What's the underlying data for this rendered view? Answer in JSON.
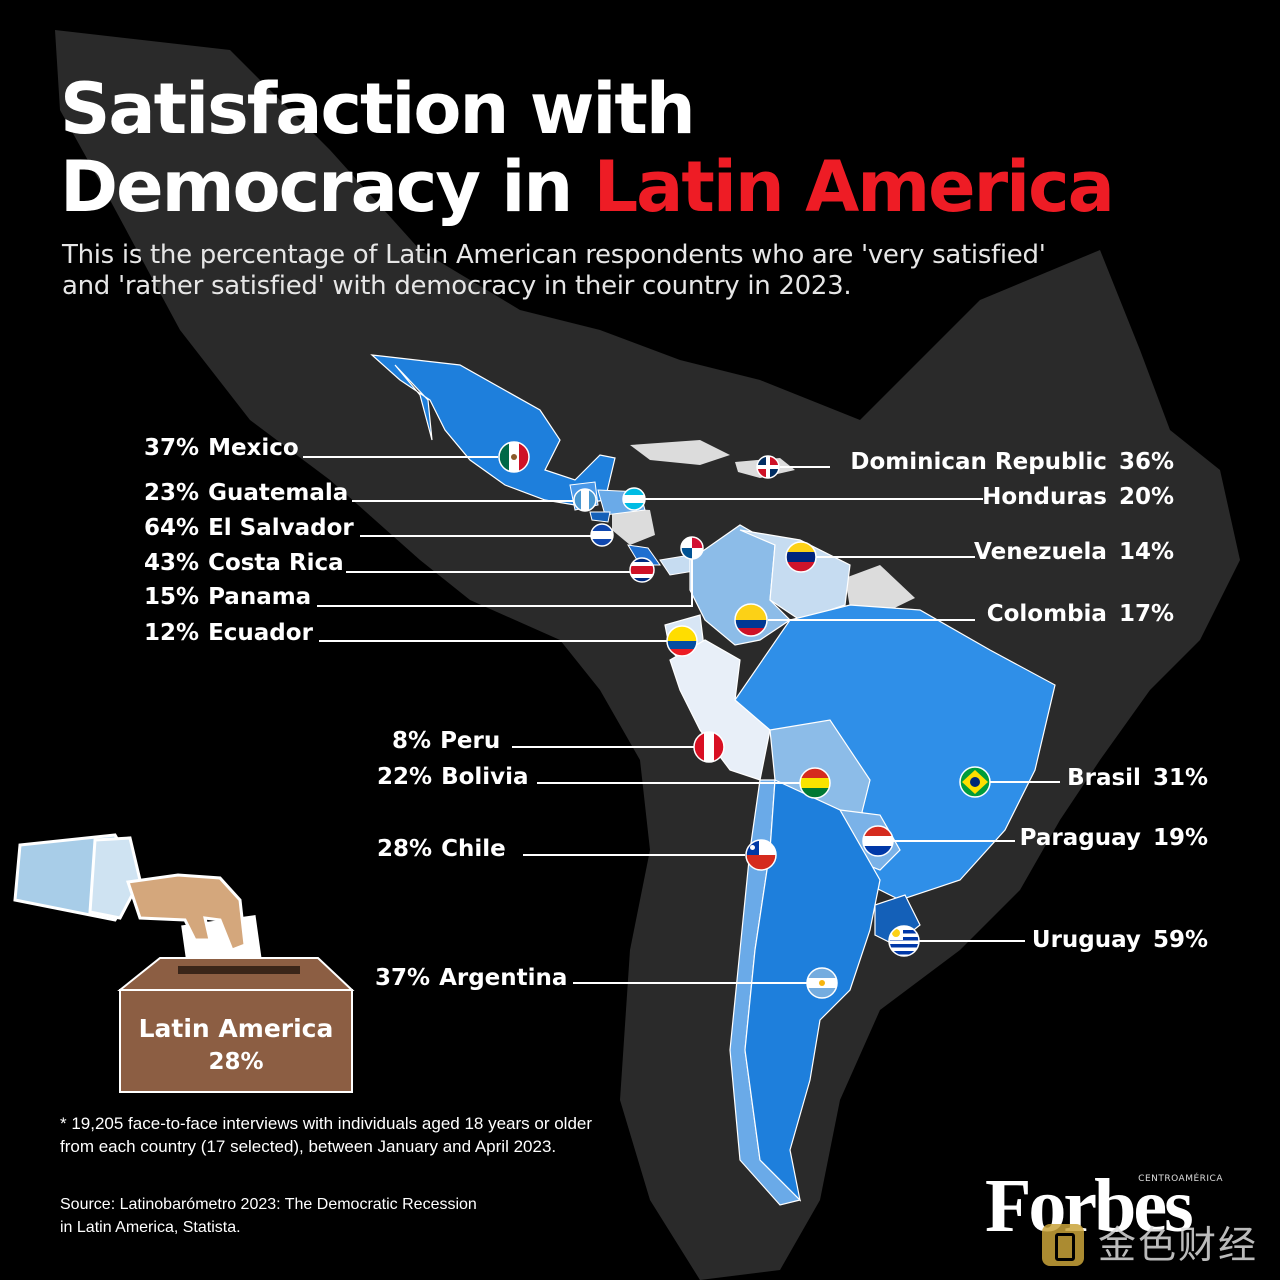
{
  "title": {
    "line1": "Satisfaction with",
    "line2_prefix": "Democracy in ",
    "line2_accent": "Latin America"
  },
  "subtitle_line1": "This is the percentage of Latin American respondents who are 'very satisfied'",
  "subtitle_line2": "and 'rather satisfied' with democracy in their country in 2023.",
  "countries": {
    "mexico": {
      "name": "Mexico",
      "pct": "37%"
    },
    "guatemala": {
      "name": "Guatemala",
      "pct": "23%"
    },
    "el_salvador": {
      "name": "El Salvador",
      "pct": "64%"
    },
    "costa_rica": {
      "name": "Costa Rica",
      "pct": "43%"
    },
    "panama": {
      "name": "Panama",
      "pct": "15%"
    },
    "ecuador": {
      "name": "Ecuador",
      "pct": "12%"
    },
    "dominican_republic": {
      "name": "Dominican Republic",
      "pct": "36%"
    },
    "honduras": {
      "name": "Honduras",
      "pct": "20%"
    },
    "venezuela": {
      "name": "Venezuela",
      "pct": "14%"
    },
    "colombia": {
      "name": "Colombia",
      "pct": "17%"
    },
    "peru": {
      "name": "Peru",
      "pct": "8%"
    },
    "bolivia": {
      "name": "Bolivia",
      "pct": "22%"
    },
    "chile": {
      "name": "Chile",
      "pct": "28%"
    },
    "argentina": {
      "name": "Argentina",
      "pct": "37%"
    },
    "brasil": {
      "name": "Brasil",
      "pct": "31%"
    },
    "paraguay": {
      "name": "Paraguay",
      "pct": "19%"
    },
    "uruguay": {
      "name": "Uruguay",
      "pct": "59%"
    }
  },
  "ballot": {
    "region": "Latin America",
    "value": "28%"
  },
  "footnote_line1": "* 19,205 face-to-face interviews with individuals aged 18 years or older",
  "footnote_line2": "from each country (17 selected), between January and April 2023.",
  "source_line1": "Source: Latinobarómetro 2023: The Democratic Recession",
  "source_line2": "in Latin America, Statista.",
  "brand": {
    "name": "Forbes",
    "edition": "CENTROAMÉRICA"
  },
  "watermark": {
    "icon": "watermark-logo-icon",
    "text": "金色财经"
  },
  "colors": {
    "background": "#000000",
    "land_background": "#2a2a2a",
    "accent_red": "#ee1c25",
    "blue_high": "#1e7fdc",
    "blue_mid": "#2f8fe8",
    "blue_light": "#8cbce8",
    "blue_pale": "#c6dcf1",
    "blue_dark": "#1460b8",
    "uncovered_land": "#dcdcdc",
    "ballot_box": "#8c5e43"
  }
}
